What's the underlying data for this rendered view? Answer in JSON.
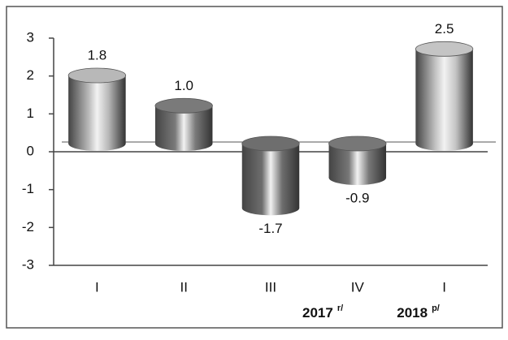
{
  "chart_data": {
    "type": "bar",
    "categories": [
      "I",
      "II",
      "III",
      "IV",
      "I"
    ],
    "values": [
      1.8,
      1.0,
      -1.7,
      -0.9,
      2.5
    ],
    "value_labels": [
      "1.8",
      "1.0",
      "-1.7",
      "-0.9",
      "2.5"
    ],
    "colors": [
      "#b8b8b8",
      "#7a7a7a",
      "#6e6e6e",
      "#777777",
      "#c4c4c4"
    ],
    "groups": [
      {
        "name": "2017",
        "note": "r/"
      },
      {
        "name": "2018",
        "note": "p/"
      }
    ],
    "ylim": [
      -3,
      3
    ],
    "yticks": [
      3,
      2,
      1,
      0,
      -1,
      -2,
      -3
    ],
    "grid": false
  }
}
